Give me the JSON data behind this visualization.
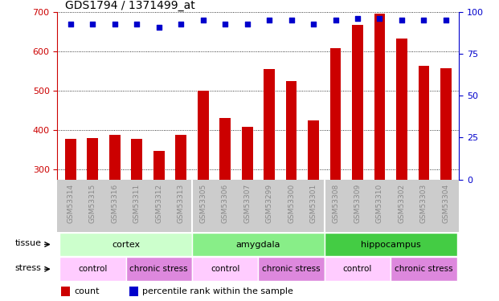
{
  "title": "GDS1794 / 1371499_at",
  "samples": [
    "GSM53314",
    "GSM53315",
    "GSM53316",
    "GSM53311",
    "GSM53312",
    "GSM53313",
    "GSM53305",
    "GSM53306",
    "GSM53307",
    "GSM53299",
    "GSM53300",
    "GSM53301",
    "GSM53308",
    "GSM53309",
    "GSM53310",
    "GSM53302",
    "GSM53303",
    "GSM53304"
  ],
  "counts": [
    378,
    380,
    388,
    378,
    348,
    388,
    500,
    430,
    408,
    555,
    525,
    425,
    608,
    668,
    695,
    632,
    563,
    557
  ],
  "percentiles": [
    93,
    93,
    93,
    93,
    91,
    93,
    95,
    93,
    93,
    95,
    95,
    93,
    95,
    96,
    96,
    95,
    95,
    95
  ],
  "bar_color": "#cc0000",
  "dot_color": "#0000cc",
  "ylim_left": [
    275,
    700
  ],
  "ylim_right": [
    0,
    100
  ],
  "yticks_left": [
    300,
    400,
    500,
    600,
    700
  ],
  "yticks_right": [
    0,
    25,
    50,
    75,
    100
  ],
  "tissue_groups": [
    {
      "label": "cortex",
      "start": 0,
      "end": 6,
      "color": "#ccffcc"
    },
    {
      "label": "amygdala",
      "start": 6,
      "end": 12,
      "color": "#88ee88"
    },
    {
      "label": "hippocampus",
      "start": 12,
      "end": 18,
      "color": "#44cc44"
    }
  ],
  "stress_groups": [
    {
      "label": "control",
      "start": 0,
      "end": 3,
      "color": "#ffccff"
    },
    {
      "label": "chronic stress",
      "start": 3,
      "end": 6,
      "color": "#dd88dd"
    },
    {
      "label": "control",
      "start": 6,
      "end": 9,
      "color": "#ffccff"
    },
    {
      "label": "chronic stress",
      "start": 9,
      "end": 12,
      "color": "#dd88dd"
    },
    {
      "label": "control",
      "start": 12,
      "end": 15,
      "color": "#ffccff"
    },
    {
      "label": "chronic stress",
      "start": 15,
      "end": 18,
      "color": "#dd88dd"
    }
  ],
  "tissue_label": "tissue",
  "stress_label": "stress",
  "legend_count_label": "count",
  "legend_pct_label": "percentile rank within the sample",
  "tick_label_color": "#888888",
  "left_axis_color": "#cc0000",
  "right_axis_color": "#0000cc",
  "gray_bg": "#cccccc"
}
